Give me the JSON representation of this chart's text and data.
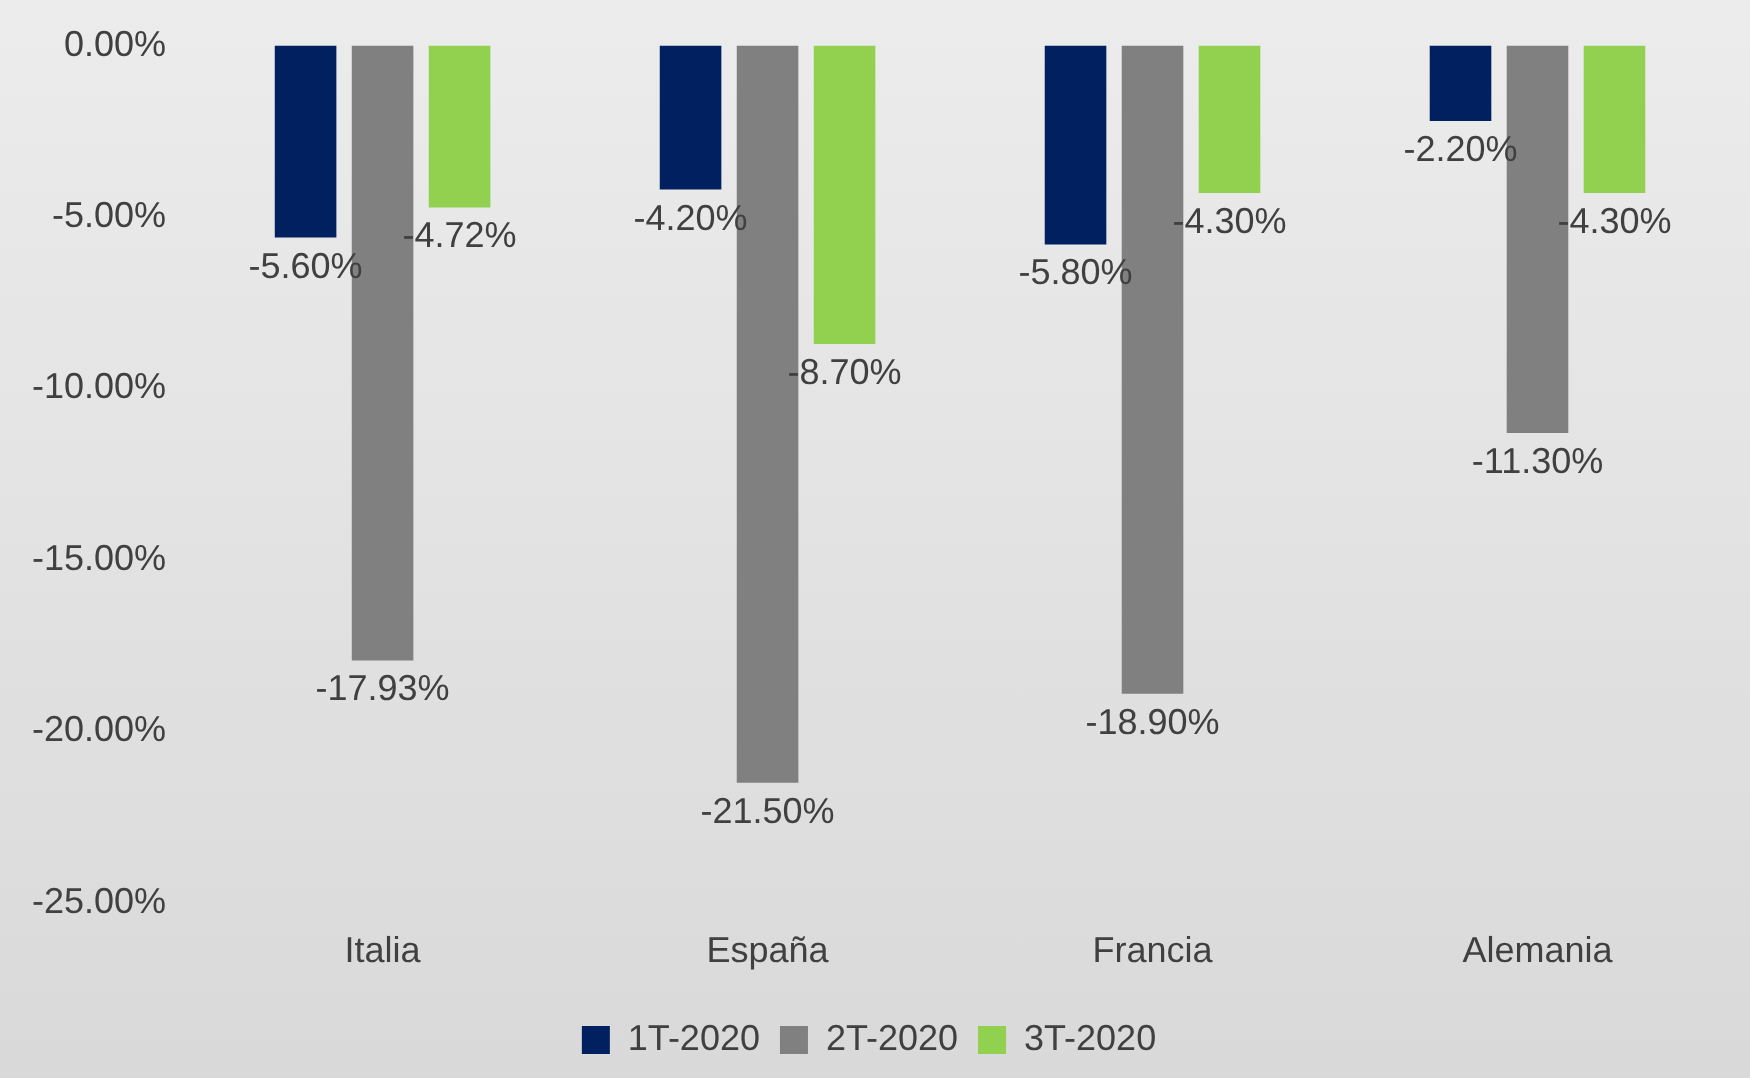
{
  "chart_data": {
    "type": "bar",
    "categories": [
      "Italia",
      "España",
      "Francia",
      "Alemania"
    ],
    "series": [
      {
        "name": "1T-2020",
        "color": "#002060",
        "values": [
          -5.6,
          -4.2,
          -5.8,
          -2.2
        ],
        "value_labels": [
          "-5.60%",
          "-4.20%",
          "-5.80%",
          "-2.20%"
        ]
      },
      {
        "name": "2T-2020",
        "color": "#808080",
        "values": [
          -17.93,
          -21.5,
          -18.9,
          -11.3
        ],
        "value_labels": [
          "-17.93%",
          "-21.50%",
          "-18.90%",
          "-11.30%"
        ]
      },
      {
        "name": "3T-2020",
        "color": "#92d050",
        "values": [
          -4.72,
          -8.7,
          -4.3,
          -4.3
        ],
        "value_labels": [
          "-4.72%",
          "-8.70%",
          "-4.30%",
          "-4.30%"
        ]
      }
    ],
    "ylim": [
      -25,
      0
    ],
    "yticks": [
      {
        "value": 0,
        "label": "0.00%"
      },
      {
        "value": -5,
        "label": "-5.00%"
      },
      {
        "value": -10,
        "label": "-10.00%"
      },
      {
        "value": -15,
        "label": "-15.00%"
      },
      {
        "value": -20,
        "label": "-20.00%"
      },
      {
        "value": -25,
        "label": "-25.00%"
      }
    ],
    "grid": false,
    "legend": "bottom"
  }
}
